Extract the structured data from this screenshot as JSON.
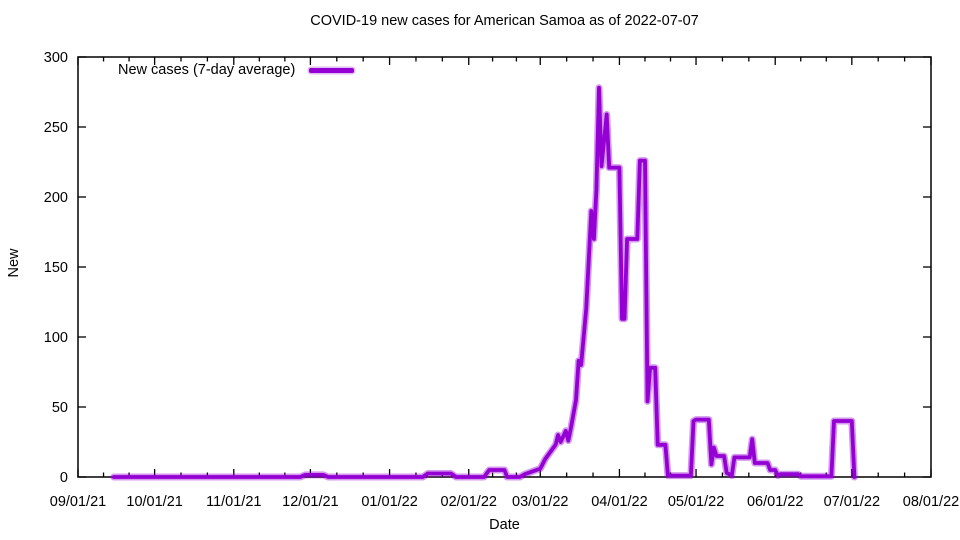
{
  "chart_data": {
    "type": "line",
    "title": "COVID-19 new cases for American Samoa as of 2022-07-07",
    "xlabel": "Date",
    "ylabel": "New",
    "ylim": [
      0,
      300
    ],
    "grid": false,
    "legend_position": "top-left-inside",
    "legend_label": "New cases (7-day average)",
    "line_color": "#9400d3",
    "axis_color": "#000000",
    "x_range": [
      "2021-09-01",
      "2022-08-01"
    ],
    "y_ticks": [
      0,
      50,
      100,
      150,
      200,
      250,
      300
    ],
    "x_ticks": [
      {
        "date": "2021-09-01",
        "label": "09/01/21"
      },
      {
        "date": "2021-10-01",
        "label": "10/01/21"
      },
      {
        "date": "2021-11-01",
        "label": "11/01/21"
      },
      {
        "date": "2021-12-01",
        "label": "12/01/21"
      },
      {
        "date": "2022-01-01",
        "label": "01/01/22"
      },
      {
        "date": "2022-02-01",
        "label": "02/01/22"
      },
      {
        "date": "2022-03-01",
        "label": "03/01/22"
      },
      {
        "date": "2022-04-01",
        "label": "04/01/22"
      },
      {
        "date": "2022-05-01",
        "label": "05/01/22"
      },
      {
        "date": "2022-06-01",
        "label": "06/01/22"
      },
      {
        "date": "2022-07-01",
        "label": "07/01/22"
      },
      {
        "date": "2022-08-01",
        "label": "08/01/22"
      }
    ],
    "points": [
      [
        "2021-09-15",
        0
      ],
      [
        "2021-11-27",
        0
      ],
      [
        "2021-11-29",
        1.5
      ],
      [
        "2021-12-06",
        1.5
      ],
      [
        "2021-12-08",
        0
      ],
      [
        "2022-01-14",
        0
      ],
      [
        "2022-01-16",
        2.5
      ],
      [
        "2022-01-25",
        2.5
      ],
      [
        "2022-01-27",
        0
      ],
      [
        "2022-02-07",
        0
      ],
      [
        "2022-02-09",
        5
      ],
      [
        "2022-02-15",
        5
      ],
      [
        "2022-02-16",
        0
      ],
      [
        "2022-02-21",
        0
      ],
      [
        "2022-02-23",
        2
      ],
      [
        "2022-03-01",
        6
      ],
      [
        "2022-03-03",
        13
      ],
      [
        "2022-03-05",
        18
      ],
      [
        "2022-03-07",
        23
      ],
      [
        "2022-03-08",
        30
      ],
      [
        "2022-03-09",
        25
      ],
      [
        "2022-03-11",
        33
      ],
      [
        "2022-03-12",
        26
      ],
      [
        "2022-03-13",
        35
      ],
      [
        "2022-03-15",
        55
      ],
      [
        "2022-03-16",
        83
      ],
      [
        "2022-03-17",
        80
      ],
      [
        "2022-03-19",
        120
      ],
      [
        "2022-03-21",
        190
      ],
      [
        "2022-03-22",
        170
      ],
      [
        "2022-03-23",
        205
      ],
      [
        "2022-03-24",
        278
      ],
      [
        "2022-03-25",
        222
      ],
      [
        "2022-03-27",
        259
      ],
      [
        "2022-03-28",
        221
      ],
      [
        "2022-04-01",
        221
      ],
      [
        "2022-04-02",
        113
      ],
      [
        "2022-04-03",
        113
      ],
      [
        "2022-04-04",
        170
      ],
      [
        "2022-04-08",
        170
      ],
      [
        "2022-04-09",
        226
      ],
      [
        "2022-04-11",
        226
      ],
      [
        "2022-04-12",
        54
      ],
      [
        "2022-04-13",
        78
      ],
      [
        "2022-04-15",
        78
      ],
      [
        "2022-04-16",
        23
      ],
      [
        "2022-04-19",
        23
      ],
      [
        "2022-04-20",
        1
      ],
      [
        "2022-04-29",
        1
      ],
      [
        "2022-04-30",
        40
      ],
      [
        "2022-05-01",
        41
      ],
      [
        "2022-05-06",
        41
      ],
      [
        "2022-05-07",
        9
      ],
      [
        "2022-05-08",
        21
      ],
      [
        "2022-05-09",
        15
      ],
      [
        "2022-05-12",
        15
      ],
      [
        "2022-05-13",
        3
      ],
      [
        "2022-05-15",
        1
      ],
      [
        "2022-05-16",
        14
      ],
      [
        "2022-05-22",
        14
      ],
      [
        "2022-05-23",
        27
      ],
      [
        "2022-05-24",
        10
      ],
      [
        "2022-05-29",
        10
      ],
      [
        "2022-05-30",
        5
      ],
      [
        "2022-06-01",
        5
      ],
      [
        "2022-06-02",
        1
      ],
      [
        "2022-06-03",
        2
      ],
      [
        "2022-06-10",
        2
      ],
      [
        "2022-06-11",
        0.5
      ],
      [
        "2022-06-23",
        0.5
      ],
      [
        "2022-06-24",
        40
      ],
      [
        "2022-07-01",
        40
      ],
      [
        "2022-07-02",
        0
      ]
    ]
  }
}
